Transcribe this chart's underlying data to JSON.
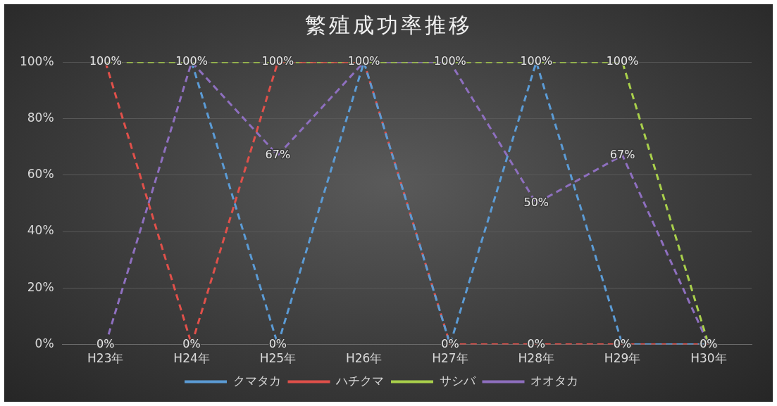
{
  "chart_data": {
    "type": "line",
    "title": "繁殖成功率推移",
    "categories": [
      "H23年",
      "H24年",
      "H25年",
      "H26年",
      "H27年",
      "H28年",
      "H29年",
      "H30年"
    ],
    "series": [
      {
        "name": "クマタカ",
        "color": "#5b9bd5",
        "values": [
          null,
          100,
          0,
          100,
          0,
          100,
          0,
          0
        ],
        "value_labels": [
          null,
          null,
          "0%",
          null,
          null,
          null,
          null,
          null
        ]
      },
      {
        "name": "ハチクマ",
        "color": "#e0504a",
        "values": [
          100,
          0,
          100,
          100,
          0,
          0,
          0,
          0
        ],
        "value_labels": [
          null,
          "0%",
          null,
          null,
          "0%",
          "0%",
          "0%",
          null
        ]
      },
      {
        "name": "サシバ",
        "color": "#a9d04b",
        "values": [
          100,
          100,
          100,
          100,
          100,
          100,
          100,
          0
        ],
        "value_labels": [
          "100%",
          "100%",
          "100%",
          "100%",
          "100%",
          "100%",
          "100%",
          "0%"
        ]
      },
      {
        "name": "オオタカ",
        "color": "#8e6fbf",
        "values": [
          0,
          100,
          67,
          100,
          100,
          50,
          67,
          0
        ],
        "value_labels": [
          "0%",
          null,
          "67%",
          null,
          null,
          "50%",
          "67%",
          null
        ]
      }
    ],
    "ylim": [
      0,
      100
    ],
    "yticks": [
      {
        "value": 0,
        "label": "0%"
      },
      {
        "value": 20,
        "label": "20%"
      },
      {
        "value": 40,
        "label": "40%"
      },
      {
        "value": 60,
        "label": "60%"
      },
      {
        "value": 80,
        "label": "80%"
      },
      {
        "value": 100,
        "label": "100%"
      }
    ],
    "grid": "y",
    "legend": "bottom",
    "marker": "none",
    "line_style": "dashed"
  }
}
